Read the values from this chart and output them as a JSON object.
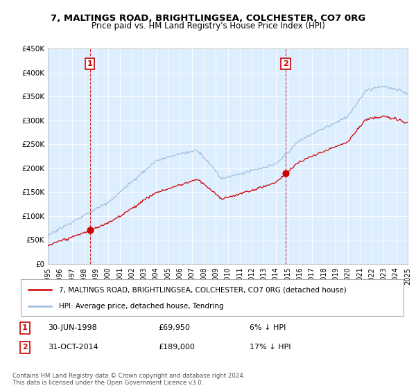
{
  "title": "7, MALTINGS ROAD, BRIGHTLINGSEA, COLCHESTER, CO7 0RG",
  "subtitle": "Price paid vs. HM Land Registry's House Price Index (HPI)",
  "hpi_label": "HPI: Average price, detached house, Tendring",
  "property_label": "7, MALTINGS ROAD, BRIGHTLINGSEA, COLCHESTER, CO7 0RG (detached house)",
  "hpi_color": "#99bbdd",
  "property_color": "#cc0000",
  "annotation1_date": 1998.5,
  "annotation1_price": 69950,
  "annotation2_date": 2014.83,
  "annotation2_price": 189000,
  "ylim": [
    0,
    450000
  ],
  "xlim_start": 1995,
  "xlim_end": 2025,
  "plot_bg_color": "#ddeeff",
  "footer": "Contains HM Land Registry data © Crown copyright and database right 2024.\nThis data is licensed under the Open Government Licence v3.0.",
  "background_color": "#ffffff",
  "grid_color": "#ffffff"
}
